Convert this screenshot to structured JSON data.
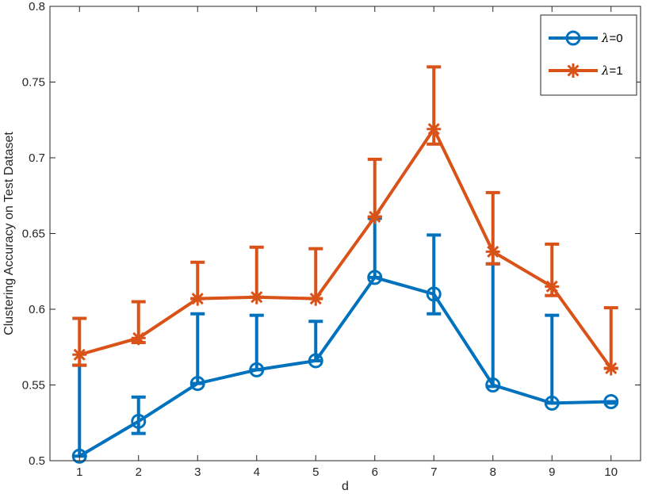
{
  "chart_data": {
    "type": "line",
    "title": "",
    "xlabel": "d",
    "ylabel": "Clustering Accuracy on Test Dataset",
    "x": [
      1,
      2,
      3,
      4,
      5,
      6,
      7,
      8,
      9,
      10
    ],
    "xlim": [
      0.5,
      10.5
    ],
    "ylim": [
      0.5,
      0.8
    ],
    "xticks": [
      1,
      2,
      3,
      4,
      5,
      6,
      7,
      8,
      9,
      10
    ],
    "yticks": [
      0.5,
      0.55,
      0.6,
      0.65,
      0.7,
      0.75,
      0.8
    ],
    "ytick_labels": [
      "0.5",
      "0.55",
      "0.6",
      "0.65",
      "0.7",
      "0.75",
      "0.8"
    ],
    "grid": false,
    "legend_position": "top-right",
    "series": [
      {
        "name": "λ=0",
        "legend_symbol": "λ",
        "legend_suffix": "=0",
        "color": "#0072BD",
        "marker": "circle",
        "values": [
          0.503,
          0.526,
          0.551,
          0.56,
          0.566,
          0.621,
          0.61,
          0.55,
          0.538,
          0.539
        ],
        "error_upper": [
          0.563,
          0.542,
          0.597,
          0.596,
          0.592,
          0.66,
          0.649,
          0.63,
          0.596,
          0.538
        ],
        "error_lower": [
          0.503,
          0.518,
          0.551,
          0.56,
          0.566,
          0.621,
          0.597,
          0.549,
          0.538,
          0.539
        ]
      },
      {
        "name": "λ=1",
        "legend_symbol": "λ",
        "legend_suffix": "=1",
        "color": "#D95319",
        "marker": "asterisk",
        "values": [
          0.57,
          0.581,
          0.607,
          0.608,
          0.607,
          0.661,
          0.719,
          0.638,
          0.615,
          0.561
        ],
        "error_upper": [
          0.594,
          0.605,
          0.631,
          0.641,
          0.64,
          0.699,
          0.76,
          0.677,
          0.643,
          0.601
        ],
        "error_lower": [
          0.563,
          0.578,
          0.607,
          0.608,
          0.607,
          0.661,
          0.709,
          0.63,
          0.609,
          0.561
        ]
      }
    ]
  }
}
